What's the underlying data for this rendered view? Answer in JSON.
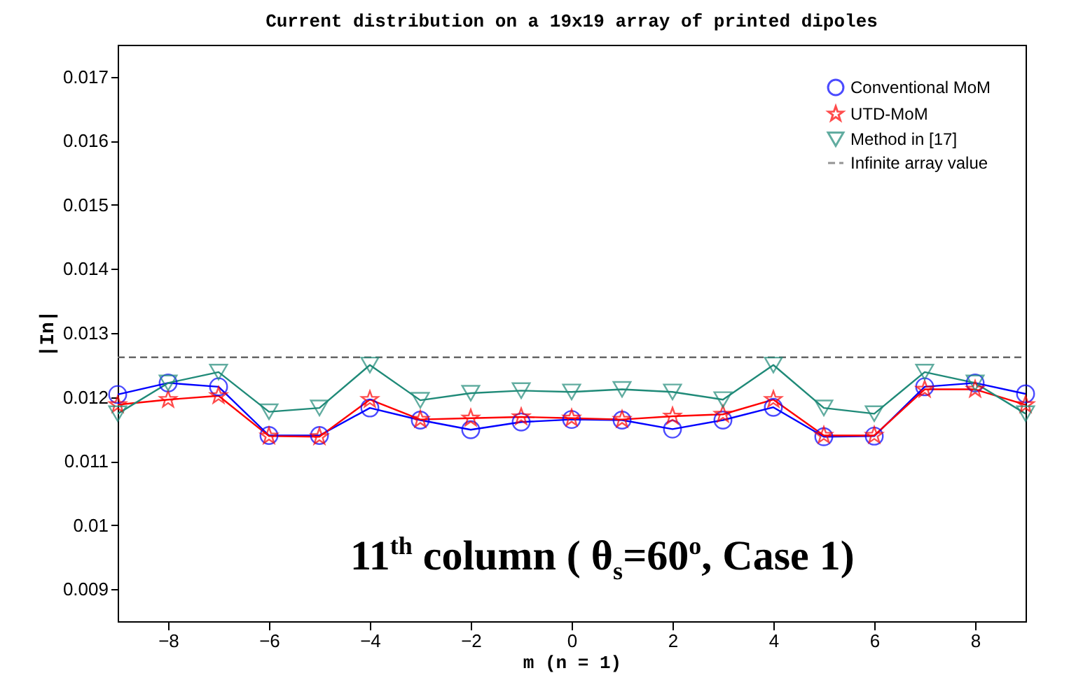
{
  "chart_data": {
    "type": "line",
    "title": "Current distribution on a 19x19 array of printed dipoles",
    "xlabel": "m (n = 1)",
    "ylabel": "|In|",
    "x": [
      -9,
      -8,
      -7,
      -6,
      -5,
      -4,
      -3,
      -2,
      -1,
      0,
      1,
      2,
      3,
      4,
      5,
      6,
      7,
      8,
      9
    ],
    "series": [
      {
        "name": "Conventional MoM",
        "color": "#0000ff",
        "marker": "circle",
        "values": [
          0.01204,
          0.01222,
          0.01216,
          0.0114,
          0.0114,
          0.01183,
          0.01164,
          0.01149,
          0.01161,
          0.01165,
          0.01164,
          0.0115,
          0.01164,
          0.01184,
          0.01138,
          0.01139,
          0.01216,
          0.01222,
          0.01205
        ]
      },
      {
        "name": "UTD-MoM",
        "color": "#ff0000",
        "marker": "star",
        "values": [
          0.01188,
          0.01196,
          0.01202,
          0.01139,
          0.01138,
          0.01196,
          0.01165,
          0.01167,
          0.01169,
          0.01167,
          0.01165,
          0.0117,
          0.01173,
          0.01196,
          0.0114,
          0.0114,
          0.01212,
          0.01212,
          0.01188
        ]
      },
      {
        "name": "Method in [17]",
        "color": "#1f8a78",
        "marker": "triangle",
        "values": [
          0.01174,
          0.01222,
          0.01239,
          0.01177,
          0.01183,
          0.0125,
          0.01195,
          0.01206,
          0.0121,
          0.01208,
          0.01212,
          0.01208,
          0.01196,
          0.0125,
          0.01183,
          0.01174,
          0.01239,
          0.01222,
          0.01174
        ]
      }
    ],
    "ref_lines": [
      {
        "axis": "y",
        "value": 0.01262,
        "label": "Infinite array value",
        "color": "#666666",
        "line_style": "dashed"
      }
    ],
    "xlim": [
      -9,
      9
    ],
    "xticks": [
      -8,
      -6,
      -4,
      -2,
      0,
      2,
      4,
      6,
      8
    ],
    "ylim": [
      0.0085,
      0.0175
    ],
    "yticks": [
      0.009,
      0.01,
      0.011,
      0.012,
      0.013,
      0.014,
      0.015,
      0.016,
      0.017
    ],
    "legend": "top right",
    "annotations": [
      "11$^{th}$ column ( θ$_{s}$=60$^{o}$, Case 1)"
    ]
  }
}
